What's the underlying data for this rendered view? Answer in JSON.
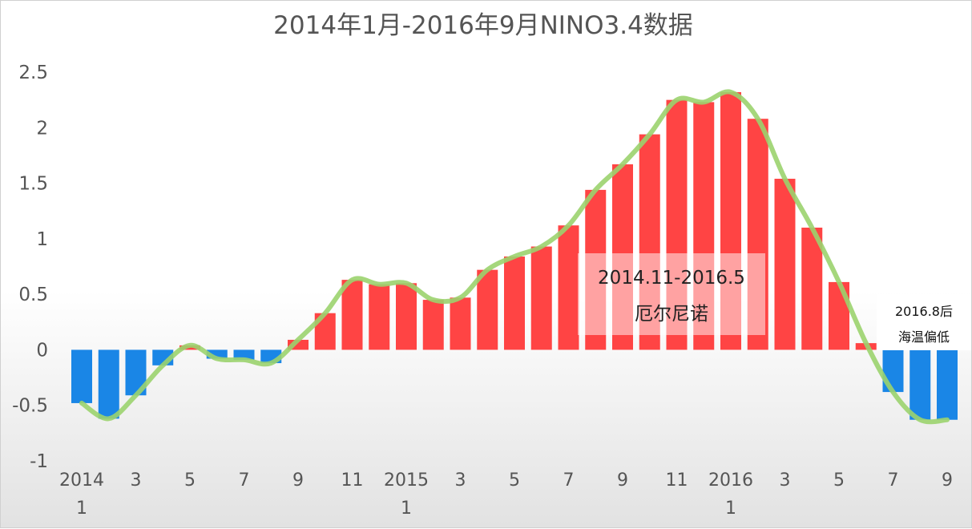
{
  "chart_data": {
    "type": "bar",
    "title": "2014年1月-2016年9月NINO3.4数据",
    "ylim": [
      -1,
      2.5
    ],
    "yticks": [
      "2.5",
      "2",
      "1.5",
      "1",
      "0.5",
      "0",
      "-0.5",
      "-1"
    ],
    "grid": false,
    "legend": "none",
    "x_tick_labels": [
      "2014",
      "3",
      "5",
      "7",
      "9",
      "11",
      "2015",
      "3",
      "5",
      "7",
      "9",
      "11",
      "2016",
      "3",
      "5",
      "7",
      "9"
    ],
    "x_year_labels": [
      "1",
      "1",
      "1"
    ],
    "categories": [
      "2014-01",
      "2014-02",
      "2014-03",
      "2014-04",
      "2014-05",
      "2014-06",
      "2014-07",
      "2014-08",
      "2014-09",
      "2014-10",
      "2014-11",
      "2014-12",
      "2015-01",
      "2015-02",
      "2015-03",
      "2015-04",
      "2015-05",
      "2015-06",
      "2015-07",
      "2015-08",
      "2015-09",
      "2015-10",
      "2015-11",
      "2015-12",
      "2016-01",
      "2016-02",
      "2016-03",
      "2016-04",
      "2016-05",
      "2016-06",
      "2016-07",
      "2016-08",
      "2016-09"
    ],
    "values": [
      -0.48,
      -0.62,
      -0.41,
      -0.14,
      0.04,
      -0.08,
      -0.09,
      -0.12,
      0.09,
      0.33,
      0.63,
      0.59,
      0.6,
      0.45,
      0.47,
      0.72,
      0.84,
      0.93,
      1.12,
      1.44,
      1.67,
      1.94,
      2.25,
      2.23,
      2.32,
      2.08,
      1.54,
      1.1,
      0.61,
      0.06,
      -0.38,
      -0.63,
      -0.63
    ],
    "bar_colors": {
      "positive": "#ff4444",
      "negative": "#1a86e6"
    },
    "trend_color": "#9bd36e",
    "annotations": [
      {
        "lines": [
          "2014.11-2016.5",
          "厄尔尼诺"
        ]
      },
      {
        "lines": [
          "2016.8后",
          "海温偏低"
        ]
      }
    ]
  }
}
